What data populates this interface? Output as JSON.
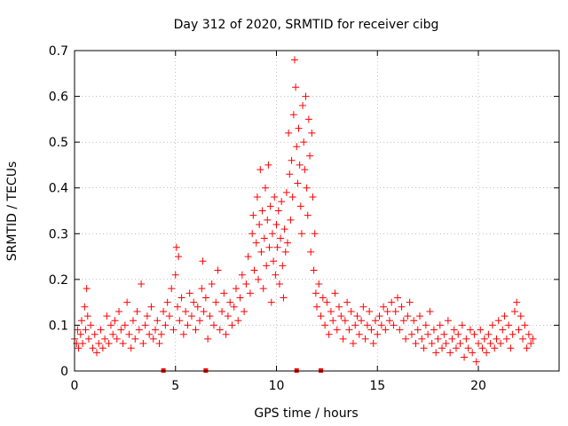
{
  "chart_data": {
    "type": "scatter",
    "title": "Day 312 of 2020, SRMTID for receiver cibg",
    "xlabel": "GPS time / hours",
    "ylabel": "SRMTID / TECUs",
    "xlim": [
      0,
      24
    ],
    "ylim": [
      0,
      0.7
    ],
    "x_ticks": [
      0,
      5,
      10,
      15,
      20
    ],
    "x_tick_labels": [
      "0",
      "5",
      "10",
      "15",
      "20"
    ],
    "y_ticks": [
      0,
      0.1,
      0.2,
      0.3,
      0.4,
      0.5,
      0.6,
      0.7
    ],
    "y_tick_labels": [
      "0",
      "0.1",
      "0.2",
      "0.3",
      "0.4",
      "0.5",
      "0.6",
      "0.7"
    ],
    "grid": true,
    "marker": "+",
    "series_color": "#ff0000",
    "baseline_markers_x": [
      4.4,
      6.5,
      11.0,
      12.2
    ],
    "points": [
      [
        0.0,
        0.07
      ],
      [
        0.1,
        0.06
      ],
      [
        0.15,
        0.09
      ],
      [
        0.2,
        0.05
      ],
      [
        0.3,
        0.08
      ],
      [
        0.35,
        0.11
      ],
      [
        0.4,
        0.06
      ],
      [
        0.5,
        0.14
      ],
      [
        0.55,
        0.09
      ],
      [
        0.6,
        0.18
      ],
      [
        0.65,
        0.12
      ],
      [
        0.7,
        0.07
      ],
      [
        0.8,
        0.1
      ],
      [
        0.9,
        0.05
      ],
      [
        1.0,
        0.08
      ],
      [
        1.1,
        0.04
      ],
      [
        1.2,
        0.06
      ],
      [
        1.3,
        0.09
      ],
      [
        1.4,
        0.05
      ],
      [
        1.5,
        0.07
      ],
      [
        1.6,
        0.12
      ],
      [
        1.7,
        0.06
      ],
      [
        1.8,
        0.1
      ],
      [
        1.9,
        0.08
      ],
      [
        2.0,
        0.11
      ],
      [
        2.1,
        0.07
      ],
      [
        2.2,
        0.13
      ],
      [
        2.3,
        0.09
      ],
      [
        2.4,
        0.06
      ],
      [
        2.5,
        0.1
      ],
      [
        2.6,
        0.15
      ],
      [
        2.7,
        0.08
      ],
      [
        2.8,
        0.05
      ],
      [
        2.9,
        0.11
      ],
      [
        3.0,
        0.07
      ],
      [
        3.1,
        0.13
      ],
      [
        3.2,
        0.09
      ],
      [
        3.3,
        0.19
      ],
      [
        3.4,
        0.06
      ],
      [
        3.5,
        0.1
      ],
      [
        3.6,
        0.12
      ],
      [
        3.7,
        0.08
      ],
      [
        3.8,
        0.14
      ],
      [
        3.9,
        0.07
      ],
      [
        4.0,
        0.09
      ],
      [
        4.1,
        0.11
      ],
      [
        4.2,
        0.06
      ],
      [
        4.3,
        0.08
      ],
      [
        4.4,
        0.13
      ],
      [
        4.5,
        0.1
      ],
      [
        4.6,
        0.15
      ],
      [
        4.7,
        0.12
      ],
      [
        4.8,
        0.18
      ],
      [
        4.9,
        0.09
      ],
      [
        5.0,
        0.21
      ],
      [
        5.05,
        0.27
      ],
      [
        5.1,
        0.14
      ],
      [
        5.15,
        0.25
      ],
      [
        5.2,
        0.11
      ],
      [
        5.3,
        0.16
      ],
      [
        5.4,
        0.08
      ],
      [
        5.5,
        0.13
      ],
      [
        5.6,
        0.1
      ],
      [
        5.7,
        0.17
      ],
      [
        5.8,
        0.12
      ],
      [
        5.9,
        0.15
      ],
      [
        6.0,
        0.09
      ],
      [
        6.1,
        0.14
      ],
      [
        6.2,
        0.11
      ],
      [
        6.3,
        0.18
      ],
      [
        6.35,
        0.24
      ],
      [
        6.4,
        0.13
      ],
      [
        6.5,
        0.16
      ],
      [
        6.6,
        0.07
      ],
      [
        6.7,
        0.12
      ],
      [
        6.8,
        0.19
      ],
      [
        6.9,
        0.1
      ],
      [
        7.0,
        0.15
      ],
      [
        7.1,
        0.22
      ],
      [
        7.2,
        0.09
      ],
      [
        7.3,
        0.13
      ],
      [
        7.4,
        0.17
      ],
      [
        7.5,
        0.08
      ],
      [
        7.6,
        0.12
      ],
      [
        7.7,
        0.15
      ],
      [
        7.8,
        0.1
      ],
      [
        7.9,
        0.14
      ],
      [
        8.0,
        0.18
      ],
      [
        8.1,
        0.11
      ],
      [
        8.2,
        0.16
      ],
      [
        8.3,
        0.21
      ],
      [
        8.4,
        0.13
      ],
      [
        8.5,
        0.19
      ],
      [
        8.6,
        0.25
      ],
      [
        8.7,
        0.17
      ],
      [
        8.8,
        0.3
      ],
      [
        8.85,
        0.34
      ],
      [
        8.9,
        0.22
      ],
      [
        9.0,
        0.28
      ],
      [
        9.05,
        0.38
      ],
      [
        9.1,
        0.2
      ],
      [
        9.15,
        0.32
      ],
      [
        9.2,
        0.44
      ],
      [
        9.25,
        0.26
      ],
      [
        9.3,
        0.35
      ],
      [
        9.35,
        0.18
      ],
      [
        9.4,
        0.29
      ],
      [
        9.45,
        0.4
      ],
      [
        9.5,
        0.23
      ],
      [
        9.55,
        0.33
      ],
      [
        9.6,
        0.45
      ],
      [
        9.65,
        0.27
      ],
      [
        9.7,
        0.36
      ],
      [
        9.75,
        0.15
      ],
      [
        9.8,
        0.3
      ],
      [
        9.85,
        0.24
      ],
      [
        9.9,
        0.38
      ],
      [
        9.95,
        0.21
      ],
      [
        10.0,
        0.32
      ],
      [
        10.05,
        0.27
      ],
      [
        10.1,
        0.35
      ],
      [
        10.15,
        0.19
      ],
      [
        10.2,
        0.29
      ],
      [
        10.25,
        0.37
      ],
      [
        10.3,
        0.23
      ],
      [
        10.35,
        0.16
      ],
      [
        10.4,
        0.31
      ],
      [
        10.45,
        0.26
      ],
      [
        10.5,
        0.39
      ],
      [
        10.55,
        0.28
      ],
      [
        10.6,
        0.52
      ],
      [
        10.65,
        0.43
      ],
      [
        10.7,
        0.33
      ],
      [
        10.75,
        0.46
      ],
      [
        10.8,
        0.38
      ],
      [
        10.85,
        0.56
      ],
      [
        10.9,
        0.68
      ],
      [
        10.95,
        0.62
      ],
      [
        11.0,
        0.49
      ],
      [
        11.05,
        0.41
      ],
      [
        11.1,
        0.53
      ],
      [
        11.15,
        0.45
      ],
      [
        11.2,
        0.36
      ],
      [
        11.25,
        0.3
      ],
      [
        11.3,
        0.58
      ],
      [
        11.35,
        0.5
      ],
      [
        11.4,
        0.44
      ],
      [
        11.45,
        0.6
      ],
      [
        11.5,
        0.4
      ],
      [
        11.55,
        0.34
      ],
      [
        11.6,
        0.55
      ],
      [
        11.65,
        0.47
      ],
      [
        11.7,
        0.26
      ],
      [
        11.75,
        0.52
      ],
      [
        11.8,
        0.38
      ],
      [
        11.85,
        0.22
      ],
      [
        11.9,
        0.3
      ],
      [
        11.95,
        0.17
      ],
      [
        12.0,
        0.14
      ],
      [
        12.1,
        0.19
      ],
      [
        12.2,
        0.12
      ],
      [
        12.3,
        0.16
      ],
      [
        12.4,
        0.1
      ],
      [
        12.5,
        0.15
      ],
      [
        12.6,
        0.08
      ],
      [
        12.7,
        0.13
      ],
      [
        12.8,
        0.11
      ],
      [
        12.9,
        0.17
      ],
      [
        13.0,
        0.09
      ],
      [
        13.1,
        0.14
      ],
      [
        13.2,
        0.12
      ],
      [
        13.3,
        0.07
      ],
      [
        13.4,
        0.11
      ],
      [
        13.5,
        0.15
      ],
      [
        13.6,
        0.09
      ],
      [
        13.7,
        0.13
      ],
      [
        13.8,
        0.06
      ],
      [
        13.9,
        0.1
      ],
      [
        14.0,
        0.12
      ],
      [
        14.1,
        0.08
      ],
      [
        14.2,
        0.11
      ],
      [
        14.3,
        0.14
      ],
      [
        14.4,
        0.07
      ],
      [
        14.5,
        0.1
      ],
      [
        14.6,
        0.13
      ],
      [
        14.7,
        0.09
      ],
      [
        14.8,
        0.06
      ],
      [
        14.9,
        0.11
      ],
      [
        15.0,
        0.08
      ],
      [
        15.1,
        0.12
      ],
      [
        15.2,
        0.1
      ],
      [
        15.3,
        0.14
      ],
      [
        15.4,
        0.09
      ],
      [
        15.5,
        0.13
      ],
      [
        15.6,
        0.11
      ],
      [
        15.7,
        0.15
      ],
      [
        15.8,
        0.1
      ],
      [
        15.9,
        0.13
      ],
      [
        16.0,
        0.16
      ],
      [
        16.1,
        0.09
      ],
      [
        16.2,
        0.14
      ],
      [
        16.3,
        0.11
      ],
      [
        16.4,
        0.07
      ],
      [
        16.5,
        0.12
      ],
      [
        16.6,
        0.15
      ],
      [
        16.7,
        0.08
      ],
      [
        16.8,
        0.11
      ],
      [
        16.9,
        0.06
      ],
      [
        17.0,
        0.09
      ],
      [
        17.1,
        0.12
      ],
      [
        17.2,
        0.07
      ],
      [
        17.3,
        0.05
      ],
      [
        17.4,
        0.1
      ],
      [
        17.5,
        0.08
      ],
      [
        17.6,
        0.13
      ],
      [
        17.7,
        0.06
      ],
      [
        17.8,
        0.09
      ],
      [
        17.9,
        0.04
      ],
      [
        18.0,
        0.07
      ],
      [
        18.1,
        0.1
      ],
      [
        18.2,
        0.05
      ],
      [
        18.3,
        0.08
      ],
      [
        18.4,
        0.06
      ],
      [
        18.5,
        0.11
      ],
      [
        18.6,
        0.04
      ],
      [
        18.7,
        0.07
      ],
      [
        18.8,
        0.09
      ],
      [
        18.9,
        0.05
      ],
      [
        19.0,
        0.08
      ],
      [
        19.1,
        0.06
      ],
      [
        19.2,
        0.1
      ],
      [
        19.3,
        0.03
      ],
      [
        19.4,
        0.07
      ],
      [
        19.5,
        0.05
      ],
      [
        19.6,
        0.09
      ],
      [
        19.7,
        0.04
      ],
      [
        19.8,
        0.08
      ],
      [
        19.9,
        0.02
      ],
      [
        20.0,
        0.06
      ],
      [
        20.1,
        0.09
      ],
      [
        20.2,
        0.05
      ],
      [
        20.3,
        0.07
      ],
      [
        20.4,
        0.04
      ],
      [
        20.5,
        0.08
      ],
      [
        20.6,
        0.06
      ],
      [
        20.7,
        0.1
      ],
      [
        20.8,
        0.05
      ],
      [
        20.9,
        0.07
      ],
      [
        21.0,
        0.11
      ],
      [
        21.1,
        0.06
      ],
      [
        21.2,
        0.09
      ],
      [
        21.3,
        0.12
      ],
      [
        21.4,
        0.07
      ],
      [
        21.5,
        0.1
      ],
      [
        21.6,
        0.05
      ],
      [
        21.7,
        0.08
      ],
      [
        21.8,
        0.13
      ],
      [
        21.9,
        0.15
      ],
      [
        22.0,
        0.09
      ],
      [
        22.1,
        0.12
      ],
      [
        22.2,
        0.07
      ],
      [
        22.3,
        0.1
      ],
      [
        22.4,
        0.05
      ],
      [
        22.5,
        0.08
      ],
      [
        22.6,
        0.06
      ],
      [
        22.7,
        0.07
      ]
    ]
  }
}
